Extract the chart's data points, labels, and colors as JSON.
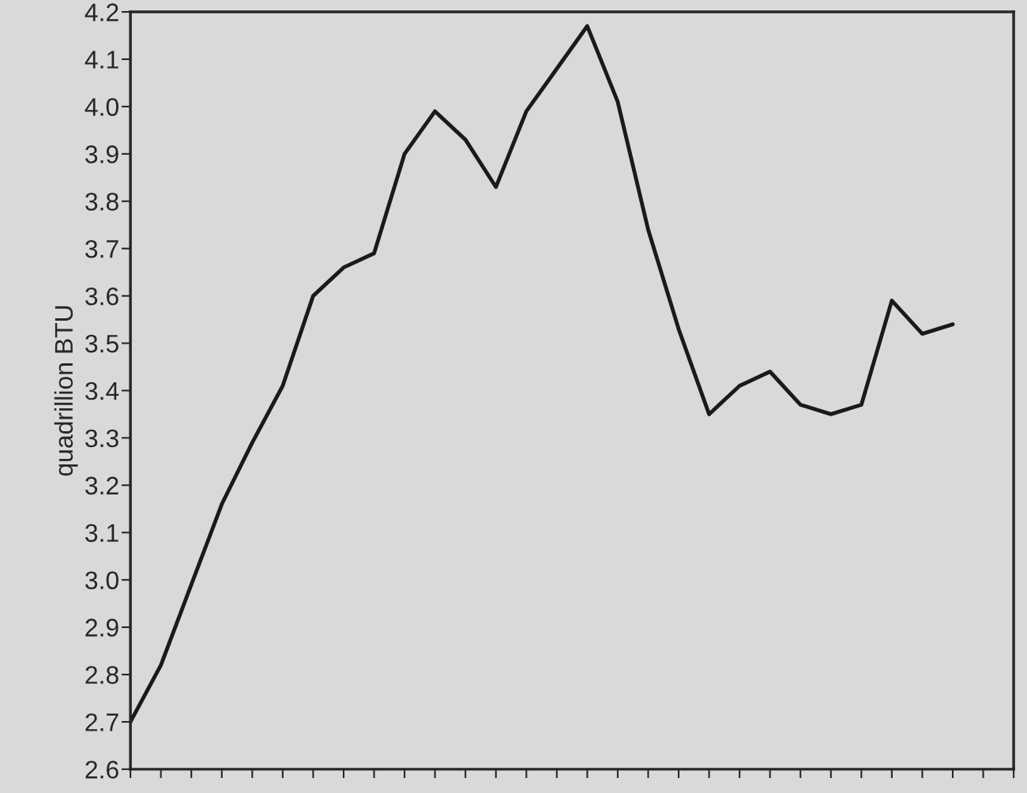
{
  "chart_data": {
    "type": "line",
    "ylabel": "quadrillion BTU",
    "categories": [
      null,
      null,
      null,
      null,
      null,
      null,
      null,
      null,
      null,
      null,
      null,
      null,
      null,
      null,
      null,
      null,
      null,
      null,
      null,
      null,
      null,
      null,
      null,
      null,
      null,
      null,
      null,
      null,
      null,
      null
    ],
    "series": [
      {
        "color": "#1a1a1a",
        "values": [
          2.7,
          2.82,
          2.99,
          3.16,
          3.29,
          3.41,
          3.6,
          3.66,
          3.69,
          3.9,
          3.99,
          3.93,
          3.83,
          3.99,
          4.08,
          4.17,
          4.01,
          3.74,
          3.53,
          3.35,
          3.41,
          3.44,
          3.37,
          3.35,
          3.37,
          3.59,
          3.52,
          3.54,
          null,
          null
        ]
      }
    ],
    "ylim": [
      2.6,
      4.2
    ],
    "yticks": [
      2.6,
      2.7,
      2.8,
      2.9,
      {
        "value": 3,
        "label": "3.0"
      },
      3.1,
      3.2,
      3.3,
      3.4,
      3.5,
      3.6,
      3.7,
      3.8,
      3.9,
      {
        "value": 4,
        "label": "4.0"
      },
      4.1,
      4.2
    ],
    "grid": false,
    "marker": "none",
    "line_style": "solid",
    "tick_labels": "y"
  }
}
